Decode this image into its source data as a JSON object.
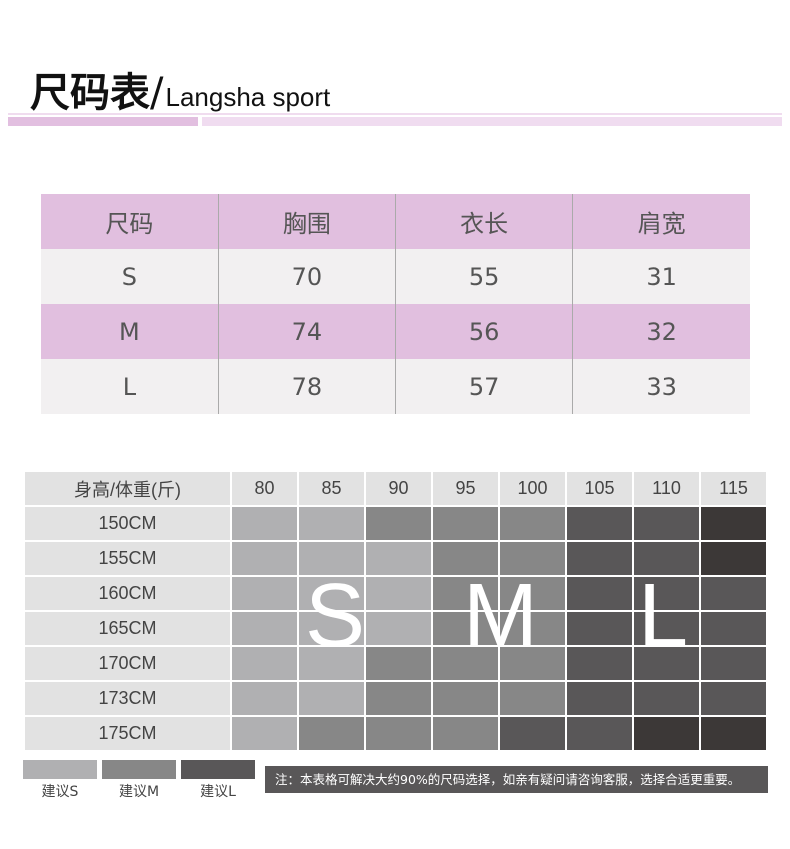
{
  "header": {
    "title": "尺码表",
    "slash": "/",
    "subtitle": "Langsha sport"
  },
  "size_table": {
    "headers": [
      "尺码",
      "胸围",
      "衣长",
      "肩宽"
    ],
    "rows": [
      [
        "S",
        "70",
        "55",
        "31"
      ],
      [
        "M",
        "74",
        "56",
        "32"
      ],
      [
        "L",
        "78",
        "57",
        "33"
      ]
    ],
    "colors": {
      "header": "#e1bfdf",
      "alt": "#f2f0f1"
    }
  },
  "fit_table": {
    "corner": "身高/体重(斤)",
    "weights": [
      "80",
      "85",
      "90",
      "95",
      "100",
      "105",
      "110",
      "115"
    ],
    "heights": [
      "150CM",
      "155CM",
      "160CM",
      "165CM",
      "170CM",
      "173CM",
      "175CM"
    ],
    "grid": [
      [
        "S",
        "S",
        "M",
        "M",
        "M",
        "L",
        "L",
        "XL"
      ],
      [
        "S",
        "S",
        "S",
        "M",
        "M",
        "L",
        "L",
        "XL"
      ],
      [
        "S",
        "S",
        "S",
        "M",
        "M",
        "L",
        "L",
        "L"
      ],
      [
        "S",
        "S",
        "S",
        "M",
        "M",
        "L",
        "L",
        "L"
      ],
      [
        "S",
        "S",
        "M",
        "M",
        "M",
        "L",
        "L",
        "L"
      ],
      [
        "S",
        "S",
        "M",
        "M",
        "M",
        "L",
        "L",
        "L"
      ],
      [
        "S",
        "M",
        "M",
        "M",
        "L",
        "L",
        "XL",
        "XL"
      ]
    ],
    "overlay": [
      "S",
      "M",
      "L"
    ],
    "colors": {
      "S": "#b0b0b2",
      "M": "#878787",
      "L": "#595758",
      "XL": "#3c3837"
    }
  },
  "legend": [
    {
      "label": "建议S",
      "color": "#b0b0b2"
    },
    {
      "label": "建议M",
      "color": "#878787"
    },
    {
      "label": "建议L",
      "color": "#595758"
    }
  ],
  "note": "注：本表格可解决大约90%的尺码选择，如亲有疑问请咨询客服，选择合适更重要。"
}
